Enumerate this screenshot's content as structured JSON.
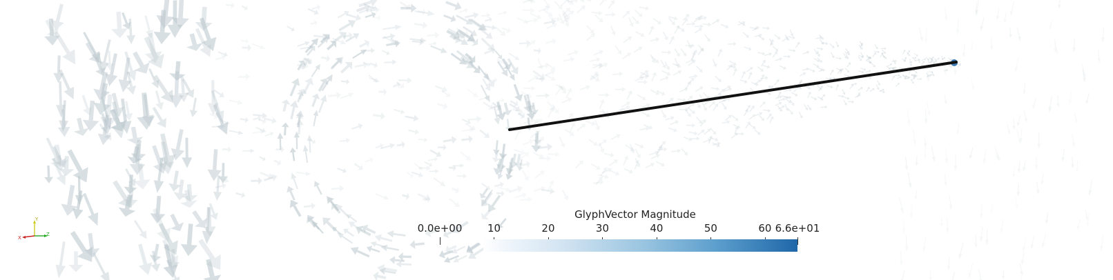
{
  "colorbar": {
    "title": "GlyphVector Magnitude",
    "range": [
      0,
      66
    ],
    "ticks": [
      {
        "value": 0,
        "label": "0.0e+00"
      },
      {
        "value": 10,
        "label": "10"
      },
      {
        "value": 20,
        "label": "20"
      },
      {
        "value": 30,
        "label": "30"
      },
      {
        "value": 40,
        "label": "40"
      },
      {
        "value": 50,
        "label": "50"
      },
      {
        "value": 60,
        "label": "60"
      },
      {
        "value": 66,
        "label": "6.6e+01"
      }
    ],
    "colors": {
      "low": "#ffffff",
      "high": "#1f67a8"
    }
  },
  "axes": {
    "x_label": "X",
    "y_label": "Y",
    "z_label": "Z",
    "x_color": "#cc2222",
    "y_color": "#cccc22",
    "z_color": "#22aa22"
  },
  "scene": {
    "glyph_color": "#b9c6cc",
    "line_color": "#111111"
  }
}
